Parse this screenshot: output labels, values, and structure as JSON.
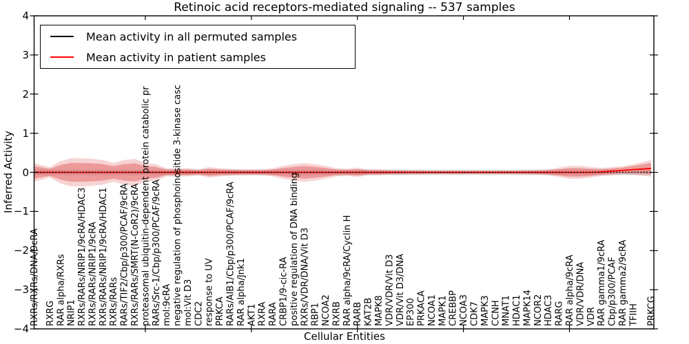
{
  "chart_data": {
    "type": "line",
    "title": "Retinoic acid receptors-mediated signaling -- 537 samples",
    "xlabel": "Cellular Entities",
    "ylabel": "Inferred Activity",
    "ylim": [
      -4,
      4
    ],
    "ytick_labels": [
      "4",
      "3",
      "2",
      "1",
      "0",
      "−1",
      "−2",
      "−3",
      "−4"
    ],
    "grid": false,
    "legend_position": "upper left",
    "categories": [
      "RXRs/RXRs/DNA/9cRA",
      "RXRG",
      "RAR alpha/RXRs",
      "NRIP1",
      "RXRs/RARs/NRIP1/9cRA/HDAC3",
      "RXRs/RARs/NRIP1/9cRA",
      "RXRs/RARs/NRIP1/9cRA/HDAC1",
      "RXRs/RARs",
      "RARs/TIF2/Cbp/p300/PCAF/9cRA",
      "RXRs/RARs/SMRT(N-CoR2)/9cRA",
      "proteasomal ubiquitin-dependent protein catabolic pr",
      "RARs/Src-1/Cbp/p300/PCAF/9cRA",
      "mol:9cRA",
      "negative regulation of phosphoinositide 3-kinase casc",
      "mol:Vit D3",
      "CDC2",
      "response to UV",
      "PRKCA",
      "RARs/AIB1/Cbp/p300/PCAF/9cRA",
      "RAR alpha/Jnk1",
      "AKT1",
      "RXRA",
      "RARA",
      "CRBP1/9-cic-RA",
      "positive regulation of DNA binding",
      "RXRs/VDR/DNA/Vit D3",
      "RBP1",
      "NCOA2",
      "RXRB",
      "RAR alpha/9cRA/Cyclin H",
      "RARB",
      "KAT2B",
      "MAPK8",
      "VDR/VDR/Vit D3",
      "VDR/Vit D3/DNA",
      "EP300",
      "PRKACA",
      "NCOA1",
      "MAPK1",
      "CREBBP",
      "NCOA3",
      "CDK7",
      "MAPK3",
      "CCNH",
      "MNAT1",
      "HDAC1",
      "MAPK14",
      "NCOR2",
      "HDAC3",
      "RARG",
      "RAR alpha/9cRA",
      "VDR/VDR/DNA",
      "VDR",
      "RAR gamma1/9cRA",
      "Cbp/p300/PCAF",
      "RAR gamma2/9cRA",
      "TFIIH",
      "PRKCG"
    ],
    "series": [
      {
        "name": "Mean activity in all permuted samples",
        "color": "#000000",
        "line_style": "dotted",
        "band_color": "#999999",
        "values": [
          0,
          0,
          0,
          0,
          0,
          0,
          0,
          0,
          0,
          0,
          0,
          0,
          0,
          0,
          0,
          0,
          0,
          0,
          0,
          0,
          0,
          0,
          0,
          0,
          0,
          0,
          0,
          0,
          0,
          0,
          0,
          0,
          0,
          0,
          0,
          0,
          0,
          0,
          0,
          0,
          0,
          0,
          0,
          0,
          0,
          0,
          0,
          0,
          0,
          0,
          0,
          0,
          0,
          0,
          0,
          0,
          0,
          0
        ],
        "band_halfwidth": 0.07
      },
      {
        "name": "Mean activity in patient samples",
        "color": "#ff0000",
        "line_style": "solid",
        "band_color": "#e05555",
        "values": [
          0,
          0,
          0,
          0,
          0,
          0,
          0,
          0,
          0,
          0,
          0,
          0,
          0,
          0,
          0,
          0,
          0,
          0,
          0,
          0,
          0,
          0,
          0,
          0,
          0,
          0,
          0,
          0,
          0,
          0,
          0,
          0,
          0,
          0,
          0,
          0,
          0,
          0,
          0,
          0,
          0,
          0,
          0,
          0,
          0,
          0,
          0,
          0,
          0,
          0,
          0,
          0,
          0,
          0.01,
          0.03,
          0.05,
          0.07,
          0.1
        ],
        "band_halfwidth": [
          0.16,
          0.09,
          0.19,
          0.24,
          0.24,
          0.23,
          0.21,
          0.16,
          0.21,
          0.23,
          0.16,
          0.14,
          0.07,
          0.07,
          0.07,
          0.05,
          0.09,
          0.07,
          0.06,
          0.05,
          0.05,
          0.05,
          0.07,
          0.11,
          0.14,
          0.16,
          0.14,
          0.11,
          0.07,
          0.06,
          0.08,
          0.05,
          0.05,
          0.04,
          0.04,
          0.035,
          0.035,
          0.03,
          0.03,
          0.03,
          0.03,
          0.03,
          0.03,
          0.03,
          0.03,
          0.03,
          0.035,
          0.04,
          0.05,
          0.08,
          0.11,
          0.11,
          0.09,
          0.07,
          0.07,
          0.07,
          0.09,
          0.14
        ]
      }
    ]
  }
}
